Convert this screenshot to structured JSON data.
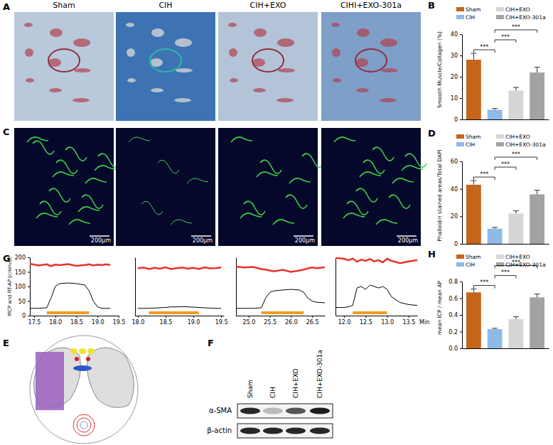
{
  "figure": {
    "panel_labels": [
      "A",
      "B",
      "C",
      "D",
      "E",
      "F",
      "G",
      "H"
    ],
    "image_titles": [
      "Sham",
      "CIH",
      "CIH+EXO",
      "CIHI+EXO-301a"
    ],
    "scale_bars": [
      "200μm",
      "200μm",
      "200μm",
      "200μm"
    ],
    "blot": {
      "lanes": [
        "Sham",
        "CIH",
        "CIH+EXO",
        "CIH+EXO-301a"
      ],
      "rows": [
        "α-SMA",
        "β-actin"
      ]
    }
  },
  "chart_data": [
    {
      "type": "bar",
      "y_label": "Smooth Muscle/Collagen (%)",
      "categories": [
        "Sham",
        "CIH",
        "CIH+EXO",
        "CIH+EXO-301a"
      ],
      "values": [
        28,
        4.5,
        13.5,
        22
      ],
      "errors": [
        3,
        0.6,
        1.5,
        2.5
      ],
      "colors": [
        "#c5651c",
        "#8fb9e6",
        "#d6d6d6",
        "#a3a3a3"
      ],
      "ylim": [
        0,
        40
      ],
      "yticks": [
        0,
        10,
        20,
        30,
        40
      ],
      "legend": "top",
      "tick_labels": "y",
      "annotations": [
        {
          "text": "***",
          "from": 0,
          "to": 1
        },
        {
          "text": "***",
          "from": 1,
          "to": 2
        },
        {
          "text": "***",
          "from": 1,
          "to": 3
        }
      ]
    },
    {
      "type": "bar",
      "y_label": "Phalloidin stained areas/Total DAPI",
      "categories": [
        "Sham",
        "CIH",
        "CIH+EXO",
        "CIH+EXO-301a"
      ],
      "values": [
        43,
        11,
        22,
        36
      ],
      "errors": [
        3,
        1,
        2,
        3
      ],
      "colors": [
        "#c5651c",
        "#8fb9e6",
        "#d6d6d6",
        "#a3a3a3"
      ],
      "ylim": [
        0,
        60
      ],
      "yticks": [
        0,
        20,
        40,
        60
      ],
      "legend": "top",
      "tick_labels": "y",
      "annotations": [
        {
          "text": "***",
          "from": 0,
          "to": 1
        },
        {
          "text": "***",
          "from": 1,
          "to": 2
        },
        {
          "text": "***",
          "from": 1,
          "to": 3
        }
      ]
    },
    {
      "type": "bar",
      "y_label": "mean ICP / mean AP",
      "categories": [
        "Sham",
        "CIH",
        "CIH+EXO",
        "CIH+EXO-301a"
      ],
      "values": [
        0.67,
        0.23,
        0.35,
        0.61
      ],
      "errors": [
        0.04,
        0.01,
        0.03,
        0.04
      ],
      "colors": [
        "#c5651c",
        "#8fb9e6",
        "#d6d6d6",
        "#a3a3a3"
      ],
      "ylim": [
        0,
        0.8
      ],
      "yticks": [
        {
          "value": 0,
          "label": "0.0"
        },
        0.2,
        0.4,
        0.6,
        0.8
      ],
      "legend": "top",
      "tick_labels": "y",
      "annotations": [
        {
          "text": "***",
          "from": 0,
          "to": 1
        },
        {
          "text": "***",
          "from": 1,
          "to": 2
        },
        {
          "text": "***",
          "from": 1,
          "to": 3
        }
      ]
    },
    {
      "type": "line",
      "y_label": "MCP and RT-AP (cmH₂O)",
      "x": [
        17.4,
        17.6,
        17.8,
        17.9,
        18.0,
        18.1,
        18.3,
        18.5,
        18.7,
        18.8,
        18.9,
        19.0,
        19.1,
        19.2,
        19.3
      ],
      "series": [
        {
          "color": "#e8322c",
          "values": [
            178,
            172,
            176,
            170,
            175,
            173,
            177,
            171,
            174,
            176,
            172,
            175,
            173,
            176,
            174
          ]
        },
        {
          "color": "#000000",
          "values": [
            25,
            25,
            27,
            60,
            100,
            110,
            112,
            110,
            105,
            85,
            50,
            30,
            25,
            25,
            25
          ]
        }
      ],
      "stimulation": [
        17.8,
        18.8
      ],
      "xlim": [
        17.4,
        19.5
      ],
      "xticks": [
        17.5,
        {
          "value": 18,
          "label": "18.0"
        },
        18.5,
        {
          "value": 19,
          "label": "19.0"
        },
        19.5
      ],
      "ylim": [
        0,
        200
      ],
      "yticks": [
        0,
        50,
        100,
        150,
        200
      ]
    },
    {
      "type": "line",
      "x": [
        18.0,
        18.1,
        18.2,
        18.3,
        18.4,
        18.5,
        18.6,
        18.7,
        18.8,
        18.9,
        19.0,
        19.1,
        19.2,
        19.3,
        19.4,
        19.5
      ],
      "series": [
        {
          "color": "#e8322c",
          "values": [
            162,
            165,
            160,
            164,
            161,
            166,
            160,
            163,
            165,
            161,
            164,
            160,
            166,
            162,
            163,
            165
          ]
        },
        {
          "color": "#000000",
          "values": [
            25,
            25,
            25,
            26,
            27,
            28,
            30,
            30,
            31,
            30,
            29,
            28,
            27,
            26,
            25,
            25
          ]
        }
      ],
      "stimulation": [
        18.2,
        19.1
      ],
      "xlim": [
        17.95,
        19.55
      ],
      "xticks": [
        {
          "value": 18,
          "label": "18.0"
        },
        18.5,
        {
          "value": 19,
          "label": "19.0"
        },
        19.5
      ],
      "ylim": [
        0,
        200
      ],
      "tick_labels": "x"
    },
    {
      "type": "line",
      "x": [
        24.7,
        24.9,
        25.1,
        25.3,
        25.4,
        25.5,
        25.6,
        25.8,
        26.0,
        26.2,
        26.3,
        26.4,
        26.5,
        26.6,
        26.8
      ],
      "series": [
        {
          "color": "#e8322c",
          "values": [
            168,
            165,
            167,
            160,
            158,
            155,
            152,
            157,
            150,
            155,
            158,
            162,
            165,
            163,
            166
          ]
        },
        {
          "color": "#000000",
          "values": [
            25,
            25,
            25,
            27,
            60,
            80,
            85,
            88,
            90,
            88,
            80,
            60,
            50,
            46,
            44
          ]
        }
      ],
      "stimulation": [
        25.3,
        26.3
      ],
      "xlim": [
        24.7,
        26.8
      ],
      "xticks": [
        {
          "value": 25,
          "label": "25.0"
        },
        25.5,
        {
          "value": 26,
          "label": "26.0"
        },
        26.5
      ],
      "ylim": [
        0,
        200
      ],
      "tick_labels": "x"
    },
    {
      "type": "line",
      "x_label": "Min",
      "x": [
        11.8,
        12.0,
        12.1,
        12.2,
        12.3,
        12.4,
        12.5,
        12.6,
        12.7,
        12.8,
        12.9,
        13.0,
        13.1,
        13.3,
        13.5,
        13.7
      ],
      "series": [
        {
          "color": "#e8322c",
          "values": [
            198,
            195,
            190,
            196,
            185,
            192,
            188,
            194,
            186,
            190,
            183,
            195,
            188,
            180,
            186,
            190
          ]
        },
        {
          "color": "#000000",
          "values": [
            28,
            28,
            30,
            35,
            95,
            100,
            90,
            105,
            100,
            95,
            100,
            90,
            65,
            45,
            38,
            35
          ]
        }
      ],
      "stimulation": [
        12.2,
        13.0
      ],
      "xlim": [
        11.8,
        13.7
      ],
      "xticks": [
        {
          "value": 12,
          "label": "12.0"
        },
        12.5,
        {
          "value": 13,
          "label": "13.0"
        },
        13.5
      ],
      "ylim": [
        0,
        200
      ],
      "tick_labels": "x"
    }
  ]
}
